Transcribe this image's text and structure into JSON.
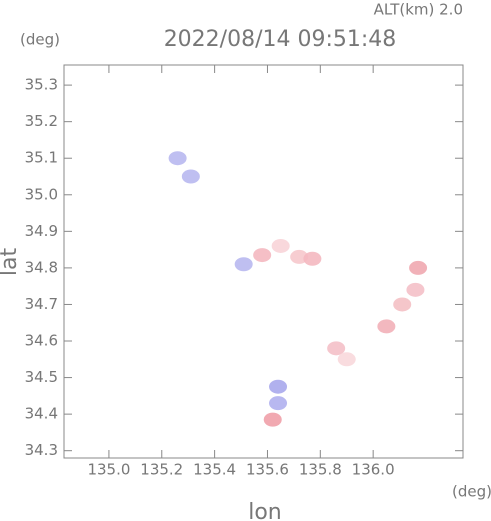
{
  "chart_data": {
    "type": "scatter",
    "title": "2022/08/14 09:51:48",
    "subtitle": "ALT(km) 2.0",
    "y_unit": "(deg)",
    "x_unit": "(deg)",
    "xlabel": "lon",
    "ylabel": "lat",
    "xlim": [
      134.83,
      136.34
    ],
    "ylim": [
      34.28,
      35.355
    ],
    "xticks": [
      {
        "value": 135.0,
        "label": "135.0"
      },
      135.2,
      135.4,
      135.6,
      135.8,
      {
        "value": 136.0,
        "label": "136.0"
      }
    ],
    "yticks": [
      34.3,
      34.4,
      34.5,
      34.6,
      34.7,
      34.8,
      34.9,
      {
        "value": 35.0,
        "label": "35.0"
      },
      35.1,
      35.2,
      35.3
    ],
    "x": [
      135.31,
      135.26,
      135.51,
      135.58,
      135.65,
      135.72,
      135.77,
      135.86,
      135.9,
      136.05,
      136.11,
      136.17,
      136.16,
      135.64,
      135.64,
      135.62
    ],
    "y": [
      35.05,
      35.1,
      34.81,
      34.835,
      34.86,
      34.83,
      34.825,
      34.58,
      34.55,
      34.64,
      34.7,
      34.8,
      34.74,
      34.475,
      34.43,
      34.385
    ],
    "colors": [
      "#b8b8f0",
      "#b8b8f0",
      "#b8b8f0",
      "#f4b8c0",
      "#f8d4d8",
      "#f6c8cc",
      "#f4b8c0",
      "#f4c0c8",
      "#f8d8dc",
      "#f2b0b8",
      "#f4c0c4",
      "#f0a8b0",
      "#f4c0c8",
      "#a8a8ec",
      "#b0b0ee",
      "#f0a0a8"
    ]
  }
}
